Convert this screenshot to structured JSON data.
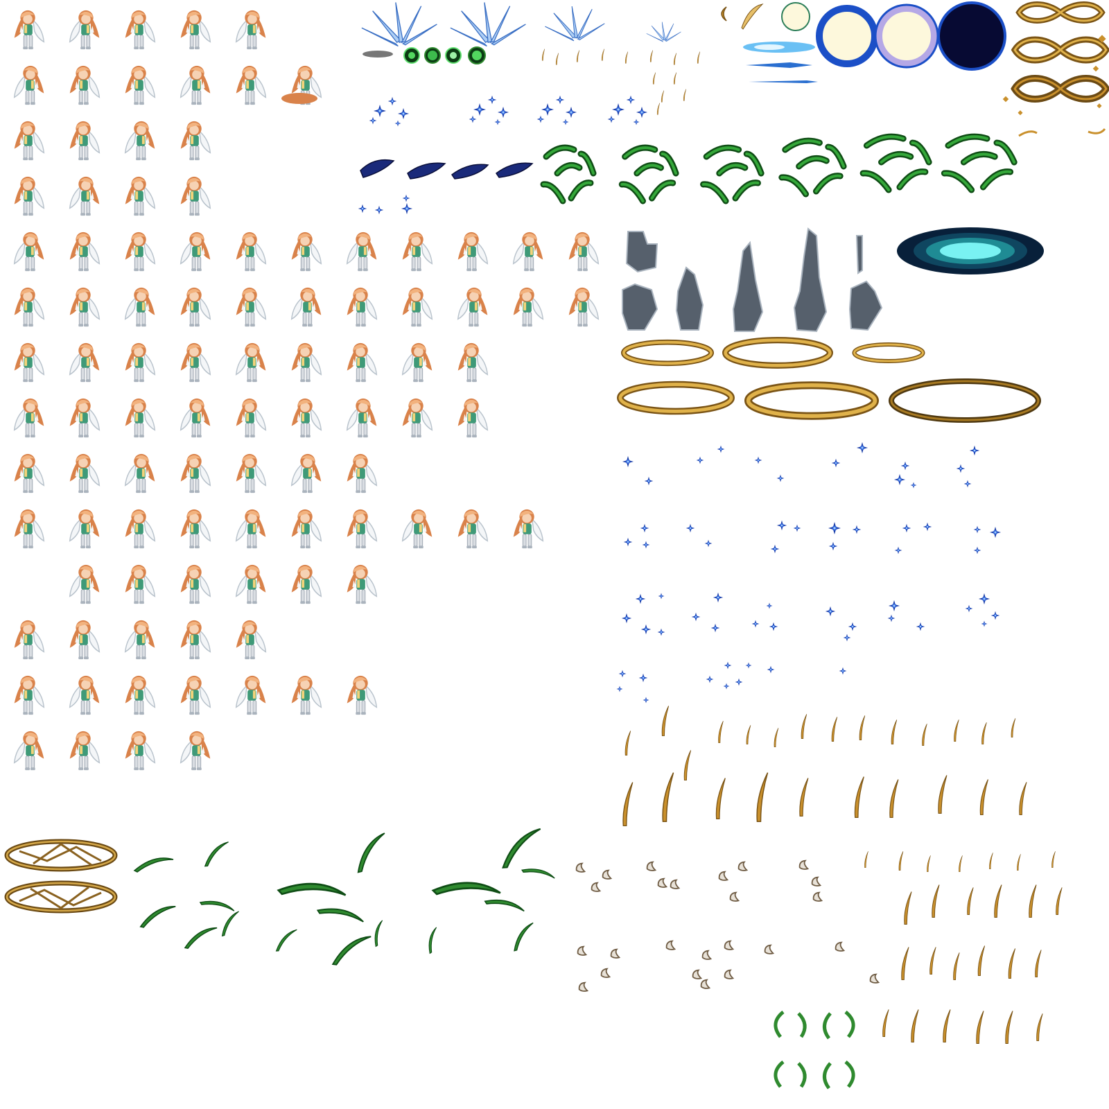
{
  "sheet": {
    "subject": "character-and-effect-sprite-sheet",
    "character_rows": [
      5,
      6,
      4,
      4,
      11,
      11,
      9,
      9,
      7,
      10,
      6,
      5,
      7,
      4
    ],
    "colors": {
      "background": "#ffffff",
      "hair": "#d9824a",
      "hair_light": "#f2b27e",
      "skin": "#f6d2b4",
      "cape": "#f4f6f8",
      "cape_shade": "#b9c3cc",
      "tunic": "#3f9a78",
      "boots": "#d9dde2",
      "gold": "#c9902c",
      "gold_dark": "#7a5416",
      "ice": "#3a6fc4",
      "ice_light": "#aecff5",
      "wind_green": "#2f8a2f",
      "wind_dark": "#0f4d15",
      "spark_blue": "#1c3fa8",
      "spark_core": "#9fd0ff",
      "smoke": "#56606c",
      "smoke_edge": "#a9b3be",
      "orb_cream": "#fdf8dc",
      "orb_blue": "#1b4fc7",
      "orb_lilac": "#b5a8e6",
      "orb_navy": "#070a33",
      "portal_cyan": "#79f2f2",
      "portal_teal": "#1f8b94",
      "portal_dark": "#08203a",
      "rock": "#6f5c44",
      "rock_light": "#e8e2d8"
    },
    "effects": {
      "ice_shard_bursts": 3,
      "green_orbs": 4,
      "blue_sparkle_clusters": 4,
      "dark_water_splashes": 4,
      "wind_rings": 6,
      "smoke_columns": 5,
      "portal": 1,
      "golden_rings": 6,
      "light_orbs": 4,
      "infinity_knots": 3,
      "magic_circles": 2,
      "rock_debris_frames": 10,
      "small_wind_swirls": 4
    }
  }
}
